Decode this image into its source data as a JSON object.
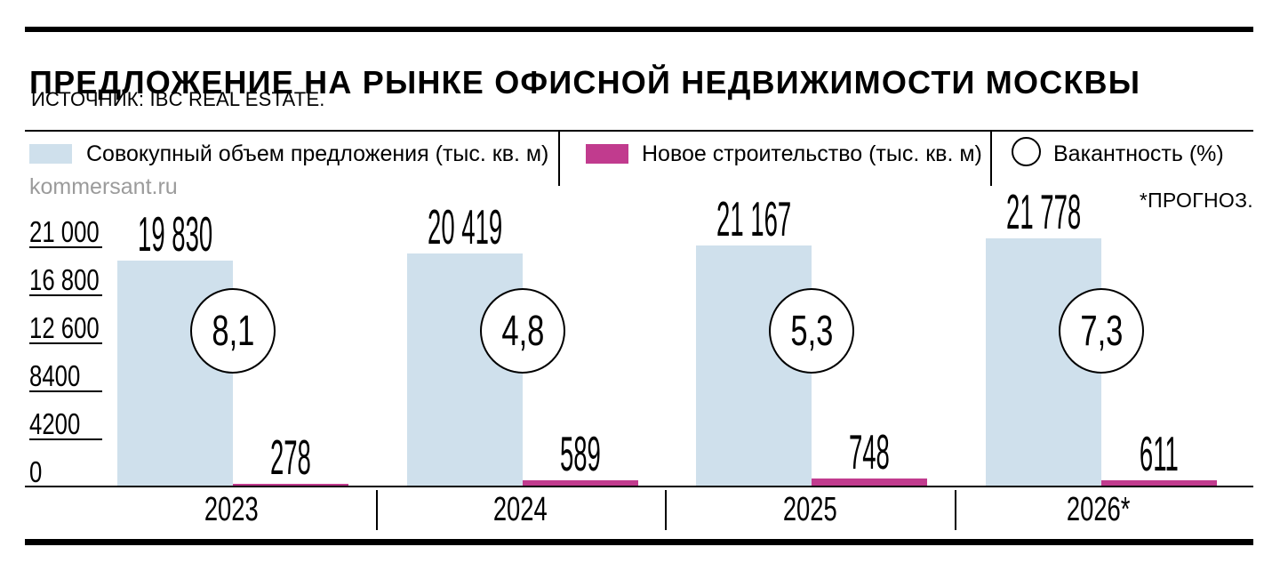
{
  "header": {
    "title": "ПРЕДЛОЖЕНИЕ НА РЫНКЕ ОФИСНОЙ НЕДВИЖИМОСТИ МОСКВЫ",
    "source": "ИСТОЧНИК: IBC REAL ESTATE."
  },
  "watermark": "kommersant.ru",
  "forecast_note": "*ПРОГНОЗ.",
  "legend": [
    {
      "swatch": "bar",
      "color": "#cfe0ec",
      "label": "Совокупный объем предложения (тыс. кв. м)"
    },
    {
      "swatch": "bar",
      "color": "#c13b8e",
      "label": "Новое строительство (тыс. кв. м)"
    },
    {
      "swatch": "circle",
      "color": "#ffffff",
      "label": "Вакантность (%)"
    }
  ],
  "colors": {
    "supply_bar": "#cfe0ec",
    "new_construction_bar": "#c13b8e",
    "text": "#000000",
    "watermark": "#9b9b9b",
    "background": "#ffffff"
  },
  "chart_data": {
    "type": "bar",
    "categories": [
      "2023",
      "2024",
      "2025",
      "2026*"
    ],
    "series": [
      {
        "name": "Совокупный объем предложения (тыс. кв. м)",
        "kind": "bar",
        "color": "#cfe0ec",
        "values": [
          19830,
          20419,
          21167,
          21778
        ]
      },
      {
        "name": "Новое строительство (тыс. кв. м)",
        "kind": "bar",
        "color": "#c13b8e",
        "values": [
          278,
          589,
          748,
          611
        ]
      },
      {
        "name": "Вакантность (%)",
        "kind": "circle-marker",
        "values": [
          8.1,
          4.8,
          5.3,
          7.3
        ]
      }
    ],
    "yticks": [
      21000,
      16800,
      12600,
      8400,
      4200,
      0
    ],
    "ylim": [
      0,
      21778
    ],
    "decimal_separator": ",",
    "thousands_separator": " ",
    "grid": "tick-underlines-left",
    "legend_position": "top"
  }
}
